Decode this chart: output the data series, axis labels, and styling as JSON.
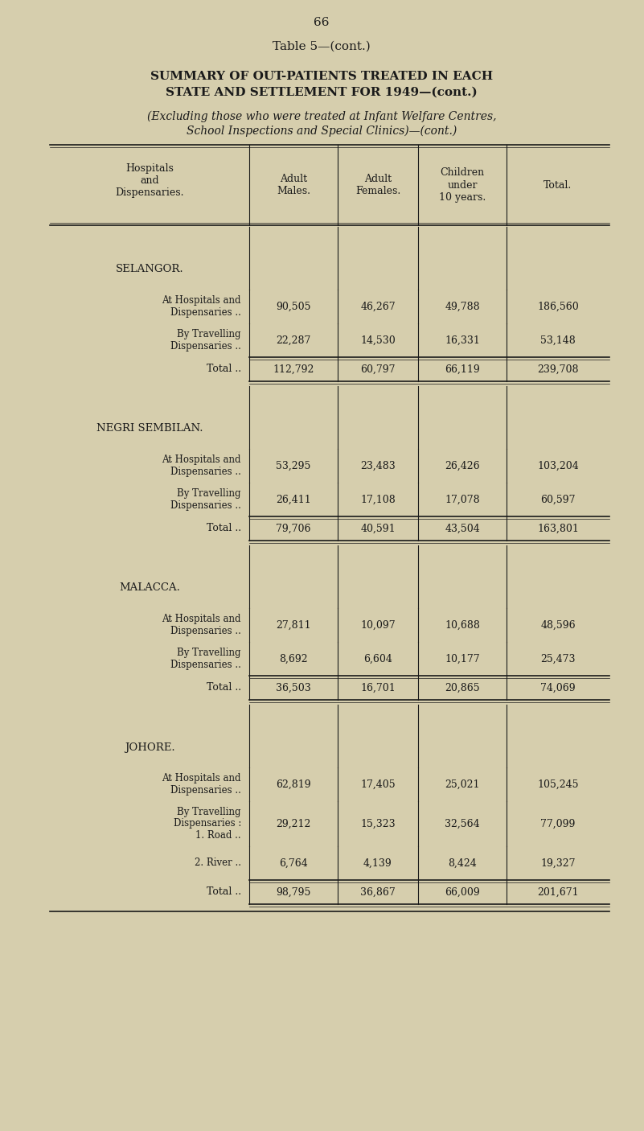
{
  "page_number": "66",
  "table_title": "Table 5—(cont.)",
  "main_title_line1": "SUMMARY OF OUT-PATIENTS TREATED IN EACH",
  "main_title_line2": "STATE AND SETTLEMENT FOR 1949—(cont.)",
  "subtitle_line1": "(Excluding those who were treated at Infant Welfare Centres,",
  "subtitle_line2": "School Inspections and Special Clinics)—(cont.)",
  "col_headers": [
    "Hospitals\nand\nDispensaries.",
    "Adult\nMales.",
    "Adult\nFemales.",
    "Children\nunder\n10 years.",
    "Total."
  ],
  "background_color": "#d6cead",
  "text_color": "#1a1a1a",
  "sections": [
    {
      "name": "SELANGOR.",
      "rows": [
        {
          "label_lines": [
            "At Hospitals and",
            "Dispensaries",
            "By Travelling",
            "Dispensaries"
          ],
          "label_display": "At Hospitals and\nDispensaries\nBy Travelling\nDispensaries",
          "sub_rows": [
            {
              "label": "At Hospitals and\nDispensaries ..",
              "adult_males": "90,505",
              "adult_females": "46,267",
              "children": "49,788",
              "total": "186,560"
            },
            {
              "label": "By Travelling\nDispensaries ..",
              "adult_males": "22,287",
              "adult_females": "14,530",
              "children": "16,331",
              "total": "53,148"
            }
          ],
          "total_row": {
            "label": "Total ..",
            "adult_males": "112,792",
            "adult_females": "60,797",
            "children": "66,119",
            "total": "239,708"
          }
        }
      ]
    },
    {
      "name": "NEGRI SEMBILAN.",
      "rows": [
        {
          "sub_rows": [
            {
              "label": "At Hospitals and\nDispensaries ..",
              "adult_males": "53,295",
              "adult_females": "23,483",
              "children": "26,426",
              "total": "103,204"
            },
            {
              "label": "By Travelling\nDispensaries ..",
              "adult_males": "26,411",
              "adult_females": "17,108",
              "children": "17,078",
              "total": "60,597"
            }
          ],
          "total_row": {
            "label": "Total ..",
            "adult_males": "79,706",
            "adult_females": "40,591",
            "children": "43,504",
            "total": "163,801"
          }
        }
      ]
    },
    {
      "name": "MALACCA.",
      "rows": [
        {
          "sub_rows": [
            {
              "label": "At Hospitals and\nDispensaries ..",
              "adult_males": "27,811",
              "adult_females": "10,097",
              "children": "10,688",
              "total": "48,596"
            },
            {
              "label": "By Travelling\nDispensaries ..",
              "adult_males": "8,692",
              "adult_females": "6,604",
              "children": "10,177",
              "total": "25,473"
            }
          ],
          "total_row": {
            "label": "Total ..",
            "adult_males": "36,503",
            "adult_females": "16,701",
            "children": "20,865",
            "total": "74,069"
          }
        }
      ]
    },
    {
      "name": "JOHORE.",
      "rows": [
        {
          "sub_rows": [
            {
              "label": "At Hospitals and\nDispensaries ..",
              "adult_males": "62,819",
              "adult_females": "17,405",
              "children": "25,021",
              "total": "105,245"
            },
            {
              "label": "By Travelling\nDispensaries :\n1. Road ..",
              "adult_males": "29,212",
              "adult_females": "15,323",
              "children": "32,564",
              "total": "77,099"
            },
            {
              "label": "2. River ..",
              "adult_males": "6,764",
              "adult_females": "4,139",
              "children": "8,424",
              "total": "19,327"
            }
          ],
          "total_row": {
            "label": "Total ..",
            "adult_males": "98,795",
            "adult_females": "36,867",
            "children": "66,009",
            "total": "201,671"
          }
        }
      ]
    }
  ]
}
